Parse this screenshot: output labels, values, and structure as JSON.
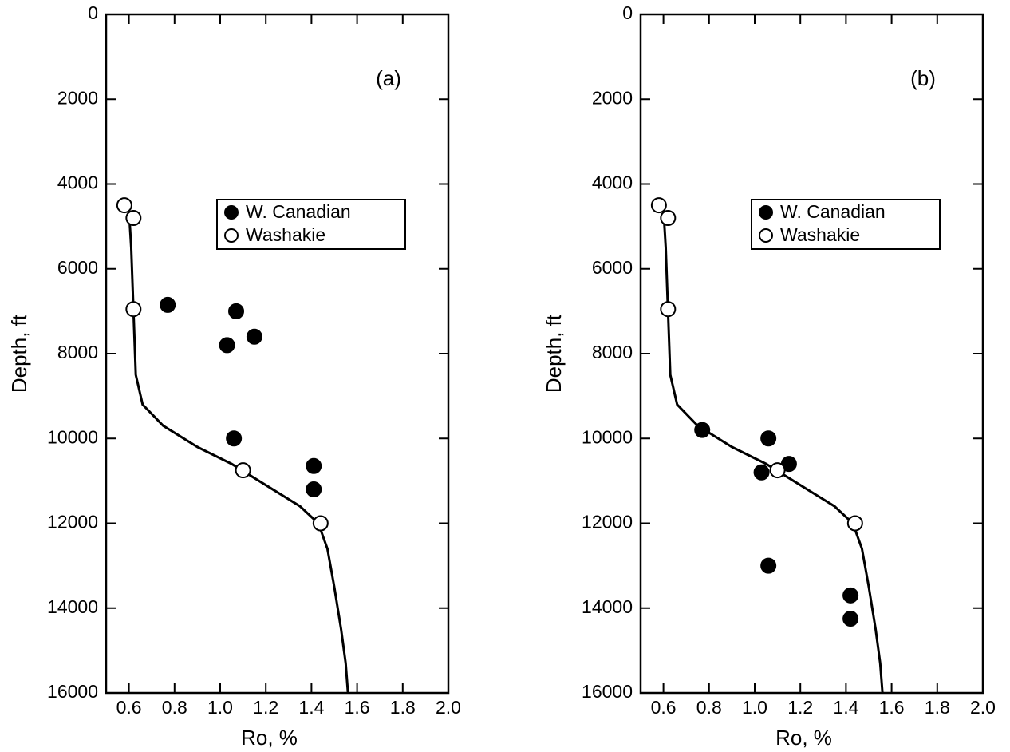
{
  "chart_data": [
    {
      "type": "scatter",
      "annotation": "(a)",
      "xlabel": "Ro, %",
      "ylabel": "Depth, ft",
      "xlim": [
        0.5,
        2.0
      ],
      "ylim": [
        16000,
        0
      ],
      "xticks": [
        0.6,
        0.8,
        {
          "value": 1,
          "label": "1.0"
        },
        1.2,
        1.4,
        1.6,
        1.8,
        {
          "value": 2,
          "label": "2.0"
        }
      ],
      "yticks": [
        0,
        2000,
        4000,
        6000,
        8000,
        10000,
        12000,
        14000,
        16000
      ],
      "series": [
        {
          "name": "W. Canadian",
          "color": "#000000",
          "x": [
            0.77,
            1.07,
            1.03,
            1.15,
            1.06,
            1.41,
            1.41
          ],
          "values": [
            6850,
            7000,
            7800,
            7600,
            10000,
            10650,
            11200
          ]
        },
        {
          "name": "Washakie",
          "color": "#ffffff",
          "x": [
            0.58,
            0.62,
            0.62,
            1.1,
            1.44
          ],
          "values": [
            4500,
            4800,
            6950,
            10750,
            12000
          ]
        },
        {
          "type": "line",
          "color": "#000000",
          "x": [
            0.6,
            0.61,
            0.62,
            0.63,
            0.66,
            0.75,
            0.9,
            1.05,
            1.2,
            1.35,
            1.43,
            1.47,
            1.5,
            1.53,
            1.55,
            1.56
          ],
          "values": [
            4600,
            5500,
            7000,
            8500,
            9200,
            9700,
            10200,
            10600,
            11100,
            11600,
            12000,
            12600,
            13500,
            14500,
            15300,
            16000
          ]
        }
      ]
    },
    {
      "type": "scatter",
      "annotation": "(b)",
      "xlabel": "Ro, %",
      "ylabel": "Depth, ft",
      "xlim": [
        0.5,
        2.0
      ],
      "ylim": [
        16000,
        0
      ],
      "xticks": [
        0.6,
        0.8,
        {
          "value": 1,
          "label": "1.0"
        },
        1.2,
        1.4,
        1.6,
        1.8,
        {
          "value": 2,
          "label": "2.0"
        }
      ],
      "yticks": [
        0,
        2000,
        4000,
        6000,
        8000,
        10000,
        12000,
        14000,
        16000
      ],
      "series": [
        {
          "name": "W. Canadian",
          "color": "#000000",
          "x": [
            0.77,
            1.06,
            1.15,
            1.03,
            1.06,
            1.42,
            1.42
          ],
          "values": [
            9800,
            10000,
            10600,
            10800,
            13000,
            13700,
            14250
          ]
        },
        {
          "name": "Washakie",
          "color": "#ffffff",
          "x": [
            0.58,
            0.62,
            0.62,
            1.1,
            1.44
          ],
          "values": [
            4500,
            4800,
            6950,
            10750,
            12000
          ]
        },
        {
          "type": "line",
          "color": "#000000",
          "x": [
            0.6,
            0.61,
            0.62,
            0.63,
            0.66,
            0.75,
            0.9,
            1.05,
            1.2,
            1.35,
            1.43,
            1.47,
            1.5,
            1.53,
            1.55,
            1.56
          ],
          "values": [
            4600,
            5500,
            7000,
            8500,
            9200,
            9700,
            10200,
            10600,
            11100,
            11600,
            12000,
            12600,
            13500,
            14500,
            15300,
            16000
          ]
        }
      ]
    }
  ]
}
